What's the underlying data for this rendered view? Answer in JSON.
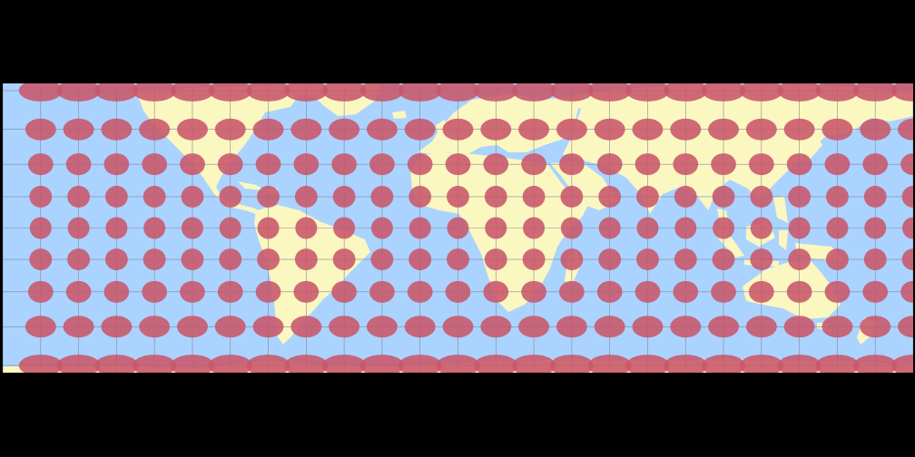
{
  "map": {
    "projection": "cylindrical",
    "graticule_step_degrees": 15,
    "colors": {
      "background": "#000000",
      "ocean": "#aad3ff",
      "land": "#fbf7c0",
      "graticule": "#7f8a99",
      "indicatrix_on_ocean": "#c8576a",
      "indicatrix_on_land": "#ef7c5a"
    },
    "indicatrix": {
      "step_degrees": 15,
      "latitudes": [
        80.5,
        75,
        60,
        45,
        30,
        15,
        0,
        -15,
        -30,
        -45,
        -60,
        -75,
        -80.5
      ],
      "longitudes": [
        -165,
        -150,
        -135,
        -120,
        -105,
        -90,
        -75,
        -60,
        -45,
        -30,
        -15,
        0,
        15,
        30,
        45,
        60,
        75,
        90,
        105,
        120,
        135,
        150,
        165,
        180
      ]
    }
  }
}
